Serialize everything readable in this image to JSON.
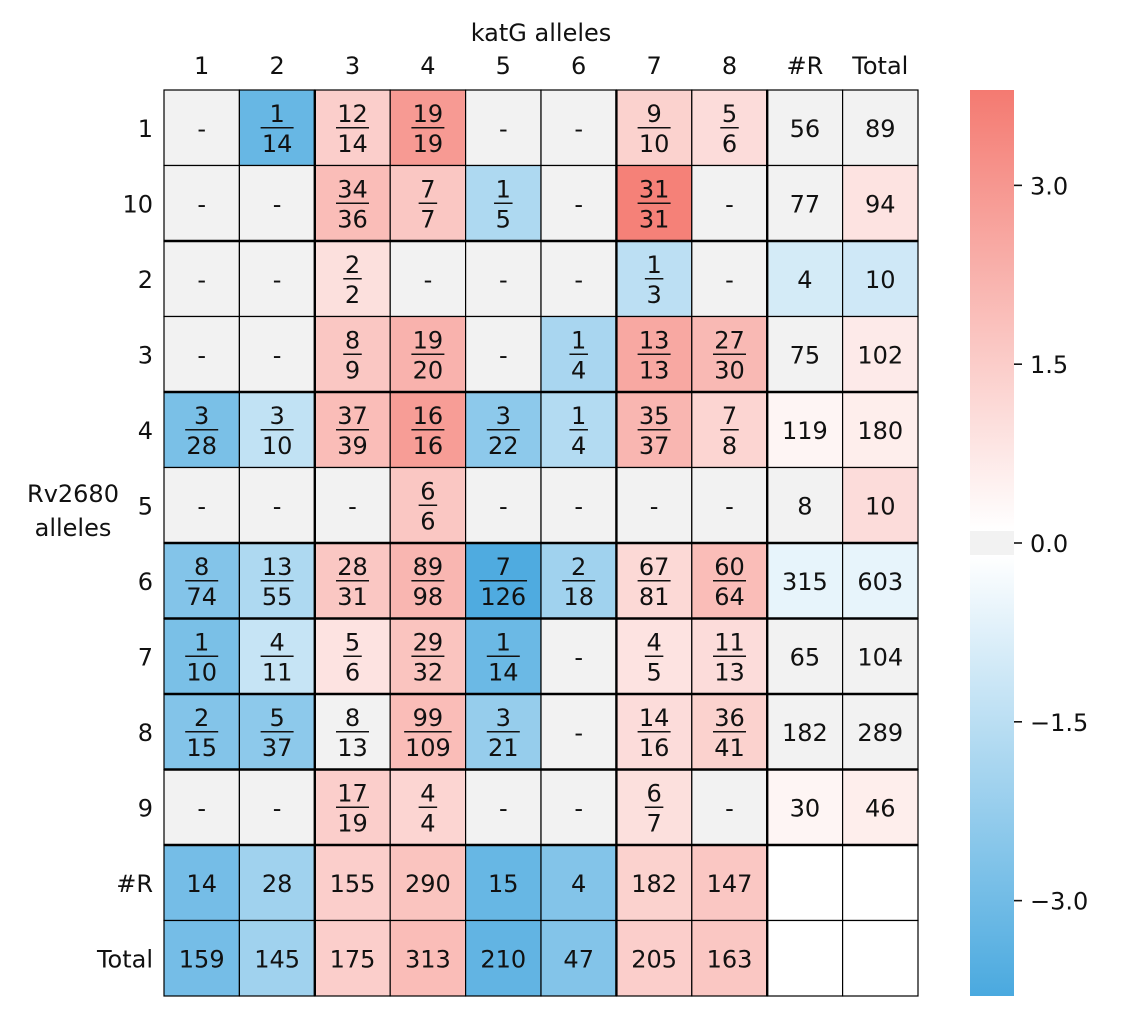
{
  "chart_data": {
    "type": "heatmap",
    "title": "",
    "xlabel": "katG alleles",
    "ylabel": "Rv2680\nalleles",
    "col_labels": [
      "1",
      "2",
      "3",
      "4",
      "5",
      "6",
      "7",
      "8",
      "#R",
      "Total"
    ],
    "row_labels": [
      "1",
      "10",
      "2",
      "3",
      "4",
      "5",
      "6",
      "7",
      "8",
      "9",
      "#R",
      "Total"
    ],
    "cells": [
      [
        "-",
        "1/14",
        "12/14",
        "19/19",
        "-",
        "-",
        "9/10",
        "5/6",
        "56",
        "89"
      ],
      [
        "-",
        "-",
        "34/36",
        "7/7",
        "1/5",
        "-",
        "31/31",
        "-",
        "77",
        "94"
      ],
      [
        "-",
        "-",
        "2/2",
        "-",
        "-",
        "-",
        "1/3",
        "-",
        "4",
        "10"
      ],
      [
        "-",
        "-",
        "8/9",
        "19/20",
        "-",
        "1/4",
        "13/13",
        "27/30",
        "75",
        "102"
      ],
      [
        "3/28",
        "3/10",
        "37/39",
        "16/16",
        "3/22",
        "1/4",
        "35/37",
        "7/8",
        "119",
        "180"
      ],
      [
        "-",
        "-",
        "-",
        "6/6",
        "-",
        "-",
        "-",
        "-",
        "8",
        "10"
      ],
      [
        "8/74",
        "13/55",
        "28/31",
        "89/98",
        "7/126",
        "2/18",
        "67/81",
        "60/64",
        "315",
        "603"
      ],
      [
        "1/10",
        "4/11",
        "5/6",
        "29/32",
        "1/14",
        "-",
        "4/5",
        "11/13",
        "65",
        "104"
      ],
      [
        "2/15",
        "5/37",
        "8/13",
        "99/109",
        "3/21",
        "-",
        "14/16",
        "36/41",
        "182",
        "289"
      ],
      [
        "-",
        "-",
        "17/19",
        "4/4",
        "-",
        "-",
        "6/7",
        "-",
        "30",
        "46"
      ],
      [
        "14",
        "28",
        "155",
        "290",
        "15",
        "4",
        "182",
        "147",
        "",
        ""
      ],
      [
        "159",
        "145",
        "175",
        "313",
        "210",
        "47",
        "205",
        "163",
        "",
        ""
      ]
    ],
    "values": [
      [
        0.0,
        -3.2,
        1.4,
        2.9,
        0.0,
        0.0,
        1.3,
        1.0,
        0.0,
        0.0
      ],
      [
        0.0,
        0.0,
        1.9,
        1.6,
        -1.7,
        0.0,
        3.6,
        0.0,
        0.0,
        0.8
      ],
      [
        0.0,
        0.0,
        0.9,
        0.0,
        0.0,
        0.0,
        -1.4,
        0.0,
        -0.9,
        -1.0
      ],
      [
        0.0,
        0.0,
        1.6,
        2.2,
        0.0,
        -1.8,
        2.5,
        2.0,
        0.0,
        0.6
      ],
      [
        -2.8,
        -1.3,
        1.9,
        2.8,
        -2.4,
        -1.6,
        2.1,
        1.2,
        0.3,
        0.5
      ],
      [
        0.0,
        0.0,
        0.0,
        1.6,
        0.0,
        0.0,
        0.0,
        0.0,
        0.0,
        1.0
      ],
      [
        -2.6,
        -1.7,
        1.6,
        2.1,
        -3.7,
        -2.0,
        1.1,
        1.9,
        -0.5,
        -0.5
      ],
      [
        -2.8,
        -1.2,
        0.8,
        1.7,
        -3.1,
        0.0,
        0.8,
        1.0,
        0.0,
        0.0
      ],
      [
        -2.6,
        -2.4,
        0.0,
        1.9,
        -2.2,
        0.0,
        1.0,
        1.3,
        0.0,
        0.0
      ],
      [
        0.0,
        0.0,
        1.4,
        1.2,
        0.0,
        0.0,
        0.9,
        0.0,
        0.3,
        0.5
      ],
      [
        -2.9,
        -2.0,
        1.4,
        1.7,
        -3.2,
        -2.6,
        1.3,
        1.6,
        null,
        null
      ],
      [
        -2.9,
        -2.0,
        1.4,
        1.9,
        -3.3,
        -2.6,
        1.4,
        1.6,
        null,
        null
      ]
    ],
    "colorbar": {
      "range": [
        -3.8,
        3.8
      ],
      "ticks": [
        3.0,
        1.5,
        0.0,
        -1.5,
        -3.0
      ],
      "tick_labels": [
        "3.0",
        "1.5",
        "0.0",
        "−1.5",
        "−3.0"
      ],
      "neutral_band": [
        -0.1,
        0.1
      ]
    },
    "colors": {
      "negative": "#4aa9df",
      "positive": "#f47a71",
      "neutral": "#f2f2f2",
      "empty": "#ffffff",
      "grid": "#000000"
    }
  }
}
